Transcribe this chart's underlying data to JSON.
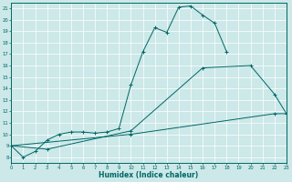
{
  "xlabel": "Humidex (Indice chaleur)",
  "bg_color": "#cce8e8",
  "grid_color": "#ffffff",
  "line_color": "#006666",
  "curve1_x": [
    0,
    1,
    2,
    3,
    4,
    5,
    6,
    7,
    8,
    9,
    10,
    11,
    12,
    13,
    14,
    15,
    16,
    17,
    18
  ],
  "curve1_y": [
    9,
    8,
    8.5,
    9.5,
    10,
    10.2,
    10.2,
    10.1,
    10.2,
    10.5,
    14.3,
    17.2,
    19.3,
    18.9,
    21.1,
    21.2,
    20.4,
    19.7,
    17.2
  ],
  "curve2_x": [
    0,
    3,
    10,
    16,
    20,
    22,
    23
  ],
  "curve2_y": [
    9.0,
    8.7,
    10.3,
    15.8,
    16.0,
    13.5,
    11.8
  ],
  "curve3_x": [
    0,
    10,
    22,
    23
  ],
  "curve3_y": [
    9.0,
    10.0,
    11.8,
    11.8
  ],
  "xlim": [
    0,
    23
  ],
  "ylim": [
    7.5,
    21.5
  ],
  "yticks": [
    8,
    9,
    10,
    11,
    12,
    13,
    14,
    15,
    16,
    17,
    18,
    19,
    20,
    21
  ],
  "xticks": [
    0,
    1,
    2,
    3,
    4,
    5,
    6,
    7,
    8,
    9,
    10,
    11,
    12,
    13,
    14,
    15,
    16,
    17,
    18,
    19,
    20,
    21,
    22,
    23
  ]
}
